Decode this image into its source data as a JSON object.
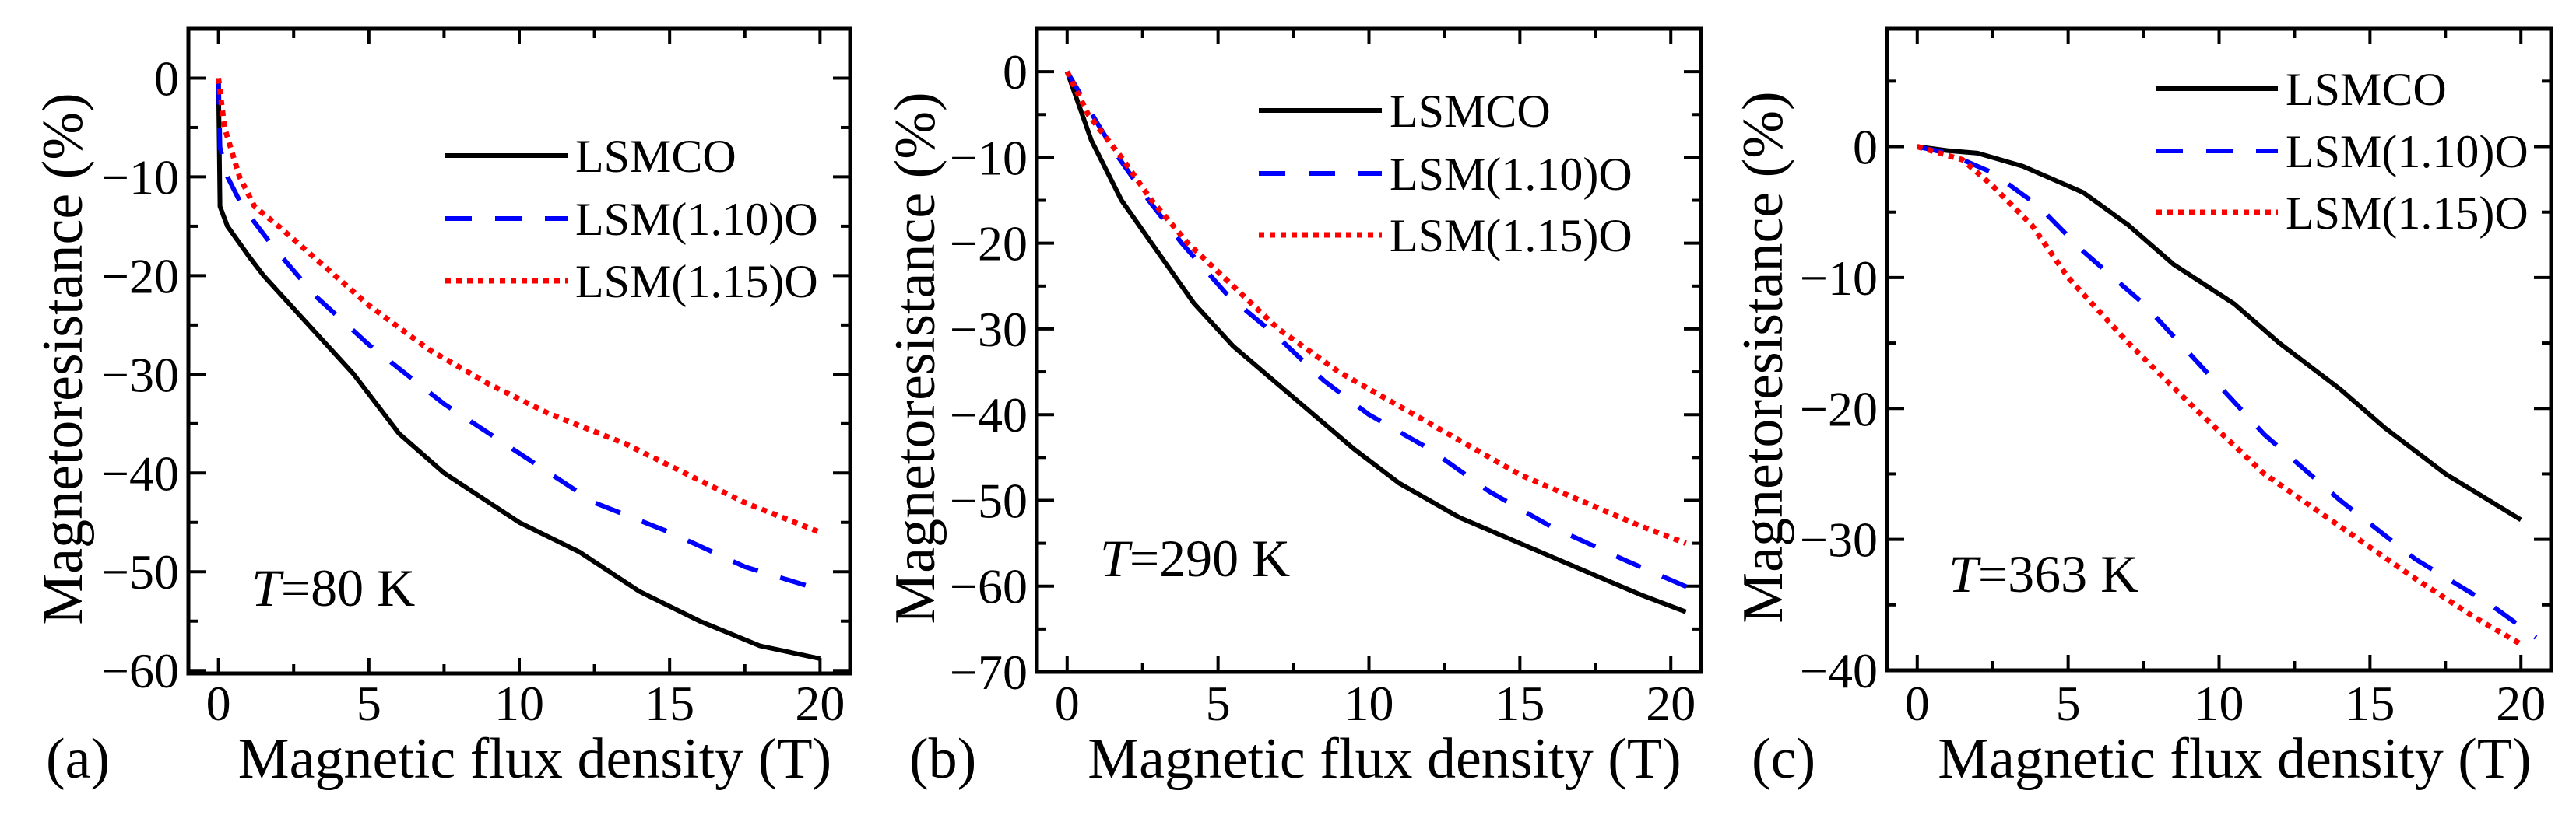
{
  "chart_data": [
    {
      "type": "line",
      "panel_label": "(a)",
      "annotation": {
        "var": "T",
        "value": "=80 K"
      },
      "xlabel": "Magnetic flux density (T)",
      "ylabel": "Magnetoresistance (%)",
      "xlim": [
        -1,
        21
      ],
      "ylim": [
        -60.3,
        5
      ],
      "xticks": [
        0,
        5,
        10,
        15,
        20
      ],
      "yticks": [
        0,
        -10,
        -20,
        -30,
        -40,
        -50,
        -60
      ],
      "series": [
        {
          "name": "LSMCO",
          "color": "#000000",
          "style": "solid",
          "x": [
            0,
            0.05,
            0.3,
            1,
            1.5,
            3,
            4.5,
            6,
            7.5,
            10,
            12,
            14,
            16,
            18,
            20
          ],
          "y": [
            0,
            -13,
            -15,
            -18,
            -20,
            -25,
            -30,
            -36,
            -40,
            -45,
            -48,
            -52,
            -55,
            -57.5,
            -58.8
          ]
        },
        {
          "name": "LSM(1.10)O",
          "color": "#0000ff",
          "style": "dashed",
          "x": [
            0,
            0.05,
            0.3,
            0.8,
            1.8,
            3.2,
            5,
            7.5,
            10,
            12.5,
            15,
            17.5,
            20.2
          ],
          "y": [
            0,
            -7,
            -10,
            -13,
            -17,
            -22,
            -27,
            -33,
            -38,
            -43,
            -46,
            -49.5,
            -52
          ]
        },
        {
          "name": "LSM(1.15)O",
          "color": "#ff0000",
          "style": "dotted",
          "x": [
            0,
            0.2,
            0.7,
            1.2,
            2,
            3.5,
            5,
            7,
            9,
            11,
            13.5,
            15.5,
            17.5,
            20
          ],
          "y": [
            0,
            -5,
            -10,
            -13,
            -15,
            -19,
            -23,
            -27.5,
            -31,
            -34,
            -37,
            -40,
            -43,
            -46
          ]
        }
      ]
    },
    {
      "type": "line",
      "panel_label": "(b)",
      "annotation": {
        "var": "T",
        "value": "=290 K"
      },
      "xlabel": "Magnetic flux density (T)",
      "ylabel": "Magnetoresistance (%)",
      "xlim": [
        -1,
        21
      ],
      "ylim": [
        -70,
        5
      ],
      "xticks": [
        0,
        5,
        10,
        15,
        20
      ],
      "yticks": [
        0,
        -10,
        -20,
        -30,
        -40,
        -50,
        -60,
        -70
      ],
      "series": [
        {
          "name": "LSMCO",
          "color": "#000000",
          "style": "solid",
          "x": [
            0,
            0.3,
            0.8,
            1.8,
            2.8,
            4.2,
            5.5,
            7.5,
            9.5,
            11,
            13,
            15,
            17,
            19,
            20.5
          ],
          "y": [
            0,
            -3,
            -8,
            -15,
            -20,
            -27,
            -32,
            -38,
            -44,
            -48,
            -52,
            -55,
            -58,
            -61,
            -63
          ]
        },
        {
          "name": "LSM(1.10)O",
          "color": "#0000ff",
          "style": "dashed",
          "x": [
            0,
            1,
            1.7,
            2.7,
            3.8,
            5.3,
            7,
            8.5,
            10,
            12,
            14,
            16,
            18.5,
            20.8
          ],
          "y": [
            0,
            -6,
            -10,
            -15,
            -20,
            -26,
            -31,
            -36,
            -40,
            -44,
            -49,
            -53,
            -57,
            -60.5
          ]
        },
        {
          "name": "LSM(1.15)O",
          "color": "#ff0000",
          "style": "dotted",
          "x": [
            0,
            0.7,
            1.8,
            2.8,
            4,
            5.5,
            7,
            9,
            11,
            13,
            15,
            17,
            19,
            20.5
          ],
          "y": [
            0,
            -5,
            -10,
            -15,
            -20,
            -25,
            -30,
            -35,
            -39,
            -43,
            -47,
            -50,
            -53,
            -55
          ]
        }
      ]
    },
    {
      "type": "line",
      "panel_label": "(c)",
      "annotation": {
        "var": "T",
        "value": "=363 K"
      },
      "xlabel": "Magnetic flux density (T)",
      "ylabel": "Magnetoresistance (%)",
      "xlim": [
        -1,
        21
      ],
      "ylim": [
        -40,
        9
      ],
      "xticks": [
        0,
        5,
        10,
        15,
        20
      ],
      "yticks": [
        0,
        -10,
        -20,
        -30,
        -40
      ],
      "series": [
        {
          "name": "LSMCO",
          "color": "#000000",
          "style": "solid",
          "x": [
            0,
            1,
            2,
            3.5,
            5.5,
            7,
            8.5,
            10.5,
            12,
            14,
            15.5,
            17.5,
            20
          ],
          "y": [
            0,
            -0.3,
            -0.5,
            -1.5,
            -3.5,
            -6,
            -9,
            -12,
            -15,
            -18.5,
            -21.5,
            -25,
            -28.5
          ]
        },
        {
          "name": "LSM(1.10)O",
          "color": "#0000ff",
          "style": "dashed",
          "x": [
            0,
            1,
            2.5,
            4,
            5.5,
            7.5,
            9.5,
            11.5,
            14,
            16.5,
            19,
            20.5
          ],
          "y": [
            0,
            -0.5,
            -2,
            -4.5,
            -8,
            -12,
            -17,
            -22,
            -27,
            -31.5,
            -35,
            -37.5
          ]
        },
        {
          "name": "LSM(1.15)O",
          "color": "#ff0000",
          "style": "dotted",
          "x": [
            0,
            1.5,
            2.5,
            3.8,
            5,
            7,
            9.2,
            11.5,
            14,
            16.5,
            18.5,
            20
          ],
          "y": [
            0,
            -1,
            -3,
            -6,
            -10,
            -15,
            -20,
            -25,
            -29,
            -33,
            -36,
            -38
          ]
        }
      ]
    }
  ]
}
